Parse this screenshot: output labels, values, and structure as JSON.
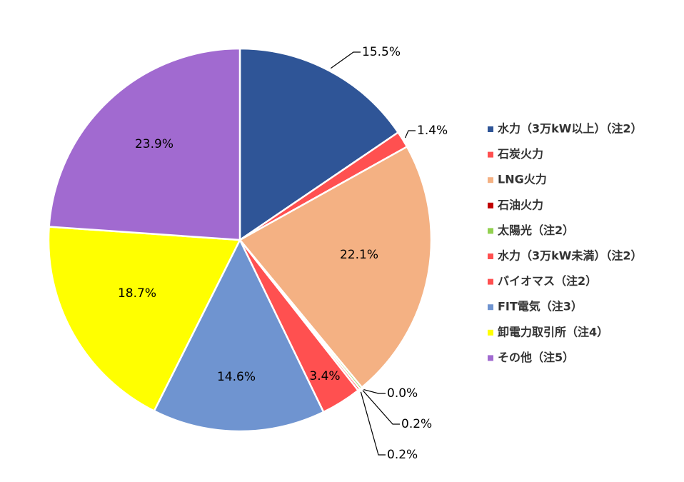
{
  "chart_data": {
    "type": "pie",
    "categories": [
      "水力（3万kW以上）（注2）",
      "石炭火力",
      "LNG火力",
      "石油火力",
      "太陽光（注2）",
      "水力（3万kW未満）（注2）",
      "バイオマス（注2）",
      "FIT電気（注3）",
      "卸電力取引所（注4）",
      "その他（注5）"
    ],
    "values": [
      15.5,
      1.4,
      22.1,
      0.0,
      0.2,
      0.2,
      3.4,
      14.6,
      18.7,
      23.9
    ],
    "value_labels": [
      "15.5%",
      "1.4%",
      "22.1%",
      "0.0%",
      "0.2%",
      "0.2%",
      "3.4%",
      "14.6%",
      "18.7%",
      "23.9%"
    ],
    "colors": [
      "#2f5597",
      "#ff5050",
      "#f4b183",
      "#c00000",
      "#92d050",
      "#ff5050",
      "#ff5050",
      "#6f94d0",
      "#ffff00",
      "#a16ad0"
    ],
    "legend": "right"
  }
}
